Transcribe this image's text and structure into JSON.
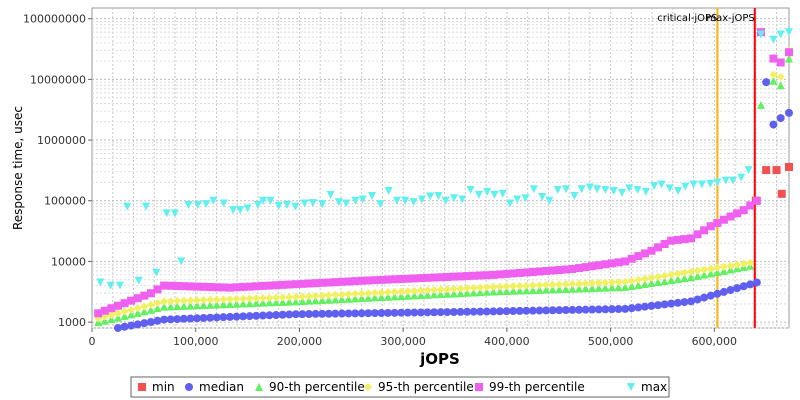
{
  "chart_data": {
    "type": "scatter",
    "xlabel": "jOPS",
    "ylabel": "Response time, usec",
    "xlim": [
      0,
      672000
    ],
    "ylim": [
      800,
      150000000
    ],
    "yscale": "log",
    "grid": true,
    "legend_position": "bottom",
    "x_ticks": [
      0,
      100000,
      200000,
      300000,
      400000,
      500000,
      600000
    ],
    "x_tick_labels": [
      "0",
      "100,000",
      "200,000",
      "300,000",
      "400,000",
      "500,000",
      "600,000"
    ],
    "y_ticks": [
      1000,
      10000,
      100000,
      1000000,
      10000000,
      100000000
    ],
    "y_tick_labels": [
      "1000",
      "10000",
      "100000",
      "1000000",
      "10000000",
      "100000000"
    ],
    "annotations": [
      {
        "label": "critical-jOPS",
        "x": 603000,
        "color": "#ffb000"
      },
      {
        "label": "max-jOPS",
        "x": 639000,
        "color": "#ff0000"
      }
    ],
    "series": [
      {
        "name": "min",
        "color": "#f05050",
        "marker": "square",
        "values": [
          [
            640000,
            100000
          ],
          [
            650000,
            320000
          ],
          [
            660000,
            320000
          ],
          [
            665000,
            130000
          ],
          [
            672000,
            360000
          ]
        ]
      },
      {
        "name": "median",
        "color": "#6060f0",
        "marker": "circle",
        "start_x": 6000,
        "step_x": 6350,
        "count": 101,
        "anchors": [
          [
            0,
            700
          ],
          [
            10,
            1100
          ],
          [
            30,
            1350
          ],
          [
            60,
            1500
          ],
          [
            80,
            1650
          ],
          [
            90,
            2200
          ],
          [
            100,
            4500
          ]
        ],
        "values": [
          [
            650000,
            9000000
          ],
          [
            657000,
            1800000
          ],
          [
            664000,
            2300000
          ],
          [
            672000,
            2800000
          ]
        ]
      },
      {
        "name": "90-th percentile",
        "color": "#60f060",
        "marker": "triangle-up",
        "start_x": 6000,
        "step_x": 6350,
        "count": 100,
        "anchors": [
          [
            0,
            1000
          ],
          [
            10,
            1800
          ],
          [
            30,
            2200
          ],
          [
            60,
            3200
          ],
          [
            80,
            3800
          ],
          [
            90,
            5500
          ],
          [
            99,
            8500
          ]
        ],
        "values": [
          [
            645000,
            3800000
          ],
          [
            657000,
            9500000
          ],
          [
            664000,
            8000000
          ],
          [
            672000,
            22000000
          ]
        ]
      },
      {
        "name": "95-th percentile",
        "color": "#f0f060",
        "marker": "diamond",
        "start_x": 6000,
        "step_x": 6350,
        "count": 100,
        "anchors": [
          [
            0,
            1150
          ],
          [
            10,
            2200
          ],
          [
            30,
            2600
          ],
          [
            60,
            3800
          ],
          [
            80,
            4600
          ],
          [
            90,
            6800
          ],
          [
            99,
            9500
          ]
        ],
        "values": [
          [
            657000,
            12000000
          ],
          [
            664000,
            11000000
          ],
          [
            672000,
            30000000
          ]
        ]
      },
      {
        "name": "99-th percentile",
        "color": "#f060f0",
        "marker": "square",
        "start_x": 6000,
        "step_x": 6350,
        "count": 101,
        "anchors": [
          [
            0,
            1400
          ],
          [
            8,
            3000
          ],
          [
            10,
            4000
          ],
          [
            20,
            3700
          ],
          [
            40,
            4800
          ],
          [
            60,
            6000
          ],
          [
            72,
            7500
          ],
          [
            80,
            10000
          ],
          [
            84,
            15000
          ],
          [
            87,
            22000
          ],
          [
            90,
            24000
          ],
          [
            93,
            38000
          ],
          [
            96,
            55000
          ],
          [
            98,
            70000
          ],
          [
            100,
            100000
          ]
        ],
        "values": [
          [
            645000,
            60000000
          ],
          [
            657000,
            22000000
          ],
          [
            664000,
            19000000
          ],
          [
            672000,
            28000000
          ]
        ]
      },
      {
        "name": "max",
        "color": "#60f0f0",
        "marker": "triangle-down",
        "values": [
          [
            8000,
            4500
          ],
          [
            18000,
            4000
          ],
          [
            27000,
            4000
          ],
          [
            34000,
            80000
          ],
          [
            45000,
            4800
          ],
          [
            52000,
            80000
          ],
          [
            62000,
            6500
          ],
          [
            72000,
            62000
          ],
          [
            80000,
            62000
          ],
          [
            86000,
            10000
          ],
          [
            93000,
            85000
          ],
          [
            102000,
            85000
          ],
          [
            110000,
            88000
          ],
          [
            117000,
            100000
          ],
          [
            127000,
            90000
          ],
          [
            136000,
            70000
          ],
          [
            143000,
            70000
          ],
          [
            150000,
            75000
          ],
          [
            160000,
            85000
          ],
          [
            165000,
            100000
          ],
          [
            172000,
            100000
          ],
          [
            180000,
            82000
          ],
          [
            188000,
            85000
          ],
          [
            196000,
            80000
          ],
          [
            205000,
            90000
          ],
          [
            213000,
            92000
          ],
          [
            222000,
            88000
          ],
          [
            230000,
            125000
          ],
          [
            238000,
            95000
          ],
          [
            245000,
            90000
          ],
          [
            254000,
            100000
          ],
          [
            261000,
            105000
          ],
          [
            270000,
            120000
          ],
          [
            278000,
            88000
          ],
          [
            286000,
            145000
          ],
          [
            294000,
            100000
          ],
          [
            302000,
            100000
          ],
          [
            310000,
            95000
          ],
          [
            318000,
            105000
          ],
          [
            326000,
            118000
          ],
          [
            334000,
            120000
          ],
          [
            341000,
            100000
          ],
          [
            349000,
            110000
          ],
          [
            357000,
            105000
          ],
          [
            365000,
            150000
          ],
          [
            373000,
            125000
          ],
          [
            381000,
            140000
          ],
          [
            388000,
            125000
          ],
          [
            396000,
            130000
          ],
          [
            403000,
            90000
          ],
          [
            410000,
            105000
          ],
          [
            418000,
            110000
          ],
          [
            426000,
            155000
          ],
          [
            434000,
            115000
          ],
          [
            441000,
            100000
          ],
          [
            449000,
            150000
          ],
          [
            457000,
            155000
          ],
          [
            465000,
            120000
          ],
          [
            472000,
            155000
          ],
          [
            480000,
            165000
          ],
          [
            487000,
            155000
          ],
          [
            495000,
            150000
          ],
          [
            503000,
            145000
          ],
          [
            511000,
            135000
          ],
          [
            518000,
            160000
          ],
          [
            526000,
            150000
          ],
          [
            534000,
            140000
          ],
          [
            542000,
            175000
          ],
          [
            549000,
            185000
          ],
          [
            557000,
            160000
          ],
          [
            565000,
            145000
          ],
          [
            572000,
            170000
          ],
          [
            580000,
            185000
          ],
          [
            588000,
            185000
          ],
          [
            596000,
            190000
          ],
          [
            603000,
            200000
          ],
          [
            611000,
            215000
          ],
          [
            618000,
            215000
          ],
          [
            626000,
            240000
          ],
          [
            633000,
            320000
          ],
          [
            645000,
            55000000
          ],
          [
            657000,
            45000000
          ],
          [
            664000,
            55000000
          ],
          [
            672000,
            60000000
          ]
        ]
      }
    ]
  }
}
